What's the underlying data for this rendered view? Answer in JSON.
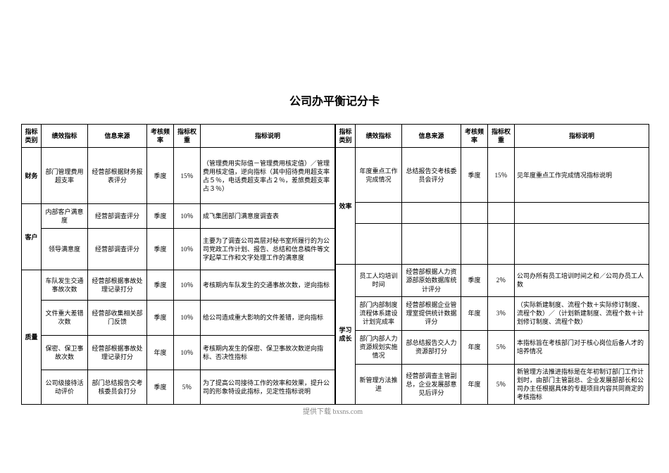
{
  "title": "公司办平衡记分卡",
  "headers": {
    "cat": "指标类别",
    "kpi": "绩效指标",
    "src": "信息来源",
    "freq": "考核频率",
    "weight": "指标权重",
    "desc": "指标说明"
  },
  "left": [
    {
      "cat": "财务",
      "rowspan": 1,
      "kpi": "部门管理费用超支率",
      "src": "经营部根据财务报表评分",
      "freq": "季度",
      "weight": "15％",
      "desc": "（管理费用实际值－管理费用核定值）／管理费用核定值，逆向指标（其中招待费用超支率占５％，电话费超支率占２％，差旅费超支率占３％）"
    },
    {
      "cat": "客户",
      "rowspan": 2,
      "kpi": "内部客户满意度",
      "src": "经营部调查评分",
      "freq": "季度",
      "weight": "10％",
      "desc": "成飞集团部门满意度调查表"
    },
    {
      "kpi": "领导满意度",
      "src": "经营部调查评分",
      "freq": "季度",
      "weight": "10％",
      "desc": "主要为了调查公司高层对秘书室所履行的为公司党政工作计划、报告、总结和信息稿件等文字起草工作和文字处理工作的满意度"
    },
    {
      "cat": "质量",
      "rowspan": 4,
      "kpi": "车队发生交通事故次数",
      "src": "经营部根据事故处理记录打分",
      "freq": "季度",
      "weight": "10％",
      "desc": "考核期内车队发生的交通事故次数，逆向指标"
    },
    {
      "kpi": "文件重大差错次数",
      "src": "经营部收集相关部门反馈",
      "freq": "季度",
      "weight": "10％",
      "desc": "给公司造成重大影响的文件差错，逆向指标"
    },
    {
      "kpi": "保密、保卫事故次数",
      "src": "经营部根据事故处理记录打分",
      "freq": "年度",
      "weight": "10％",
      "desc": "考核期内发生的保密、保卫事故次数逆向指标、否决性指标"
    },
    {
      "kpi": "公司级接待活动评价",
      "src": "部门总结报告交考核委员会打分",
      "freq": "季度",
      "weight": "5％",
      "desc": "为了提高公司接待工作的效率和效果，提升公司的形象特设此指标，见定性指标说明"
    }
  ],
  "right": [
    {
      "cat": "效率",
      "rowspan": 3,
      "kpi": "年度重点工作完成情况",
      "src": "总结报告交考核委员会评分",
      "freq": "季度",
      "weight": "15％",
      "desc": "见年度重点工作完成情况指标说明"
    },
    {
      "kpi": "",
      "src": "",
      "freq": "",
      "weight": "",
      "desc": ""
    },
    {
      "kpi": "",
      "src": "",
      "freq": "",
      "weight": "",
      "desc": ""
    },
    {
      "cat": "学习成长",
      "rowspan": 4,
      "kpi": "员工人均培训时间",
      "src": "经营部根据人力资源部原始数据库统计评分",
      "freq": "季度",
      "weight": "2％",
      "desc": "公司办所有员工培训时间之和／公司办员工人数"
    },
    {
      "kpi": "部门内部制度流程体系建设计划完成率",
      "src": "经营部根据企业管理室提供统计数据评分",
      "freq": "年度",
      "weight": "3％",
      "desc": "（实际新建制度、流程个数＋实际修订制度、流程个数）／（计划新建制度、流程个数＋计划修订制度、流程个数）"
    },
    {
      "kpi": "部门内部人力资源规划实施情况",
      "src": "部总结报告交人力资源部打分",
      "freq": "年度",
      "weight": "5％",
      "desc": "本指标旨在考核部门对于核心岗位后备人才的培养情况"
    },
    {
      "kpi": "新管理方法推进",
      "src": "经营部调查主管副总，企业发展部意见后评分",
      "freq": "年度",
      "weight": "5％",
      "desc": "新管理方法推进指标是在年初制订部门工作计划时，由部门主管副总、企业发展部部长和公司办主任根据具体的专题项目内容共同商定的考核指标"
    }
  ],
  "watermark": "提供下载 bxsns.com"
}
